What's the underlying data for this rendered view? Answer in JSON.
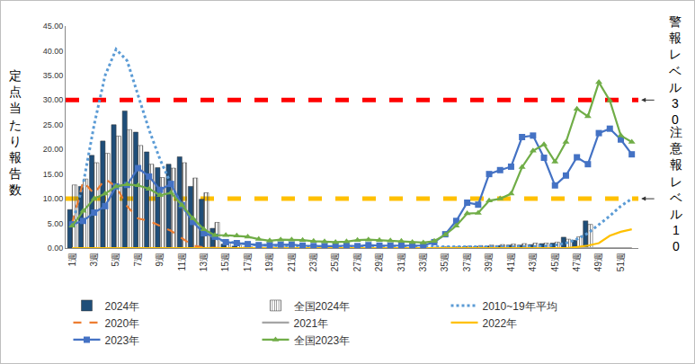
{
  "chart_data": {
    "type": "bar",
    "y_label": "定点当たり報告数",
    "categories": [
      "1週",
      null,
      "3週",
      null,
      "5週",
      null,
      "7週",
      null,
      "9週",
      null,
      "11週",
      null,
      "13週",
      null,
      "15週",
      null,
      "17週",
      null,
      "19週",
      null,
      "21週",
      null,
      "23週",
      null,
      "25週",
      null,
      "27週",
      null,
      "29週",
      null,
      "31週",
      null,
      "33週",
      null,
      "35週",
      null,
      "37週",
      null,
      "39週",
      null,
      "41週",
      null,
      "43週",
      null,
      "45週",
      null,
      "47週",
      null,
      "49週",
      null,
      "51週",
      null
    ],
    "ylim": [
      0,
      45
    ],
    "yticks": [
      {
        "value": 0,
        "label": "0.00"
      },
      {
        "value": 5,
        "label": "5.00"
      },
      {
        "value": 10,
        "label": "10.00"
      },
      {
        "value": 15,
        "label": "15.00"
      },
      {
        "value": 20,
        "label": "20.00"
      },
      {
        "value": 25,
        "label": "25.00"
      },
      {
        "value": 30,
        "label": "30.00"
      },
      {
        "value": 35,
        "label": "35.00"
      },
      {
        "value": 40,
        "label": "40.00"
      },
      {
        "value": 45,
        "label": "45.00"
      }
    ],
    "grid": false,
    "legend": "bottom",
    "annotations": [
      {
        "text": "警報レベル30",
        "y": 30,
        "color": "#ff0000"
      },
      {
        "text": "注意報レベル10",
        "y": 10,
        "color": "#ffc000"
      }
    ],
    "series": [
      {
        "name": "2024年",
        "type": "bar",
        "color": "#1f4e79",
        "values": [
          7.8,
          12.5,
          18.8,
          21.7,
          25.0,
          27.8,
          23.5,
          19.5,
          16.3,
          17.0,
          18.5,
          12.5,
          9.9,
          4.0,
          0.8,
          0.4,
          0.2,
          0.1,
          0.1,
          0.1,
          0.1,
          0.1,
          0.1,
          0.1,
          0.1,
          0.1,
          0.1,
          0.1,
          0.1,
          0.1,
          0.1,
          0.1,
          0.1,
          0.1,
          0.2,
          0.2,
          0.3,
          0.3,
          0.4,
          0.5,
          0.6,
          0.6,
          0.7,
          0.9,
          1.0,
          2.2,
          1.6,
          5.5,
          null,
          null,
          null,
          null
        ]
      },
      {
        "name": "全国2024年",
        "type": "bar",
        "color": "#f5e7a1",
        "marker": "hatched",
        "values": [
          12.8,
          14.0,
          17.3,
          19.2,
          22.7,
          24.0,
          20.8,
          17.0,
          14.3,
          16.2,
          17.3,
          14.2,
          11.2,
          5.2,
          1.2,
          0.6,
          0.3,
          0.2,
          0.2,
          0.2,
          0.1,
          0.1,
          0.1,
          0.1,
          0.1,
          0.1,
          0.1,
          0.1,
          0.1,
          0.1,
          0.1,
          0.1,
          0.1,
          0.2,
          0.3,
          0.3,
          0.4,
          0.5,
          0.6,
          0.7,
          0.8,
          0.9,
          1.0,
          1.0,
          1.2,
          1.8,
          2.3,
          4.8,
          null,
          null,
          null,
          null
        ]
      },
      {
        "name": "2010~19年平均",
        "type": "line",
        "color": "#5b9bd5",
        "line_style": "dotted",
        "marker": "none",
        "values": [
          5,
          13,
          25,
          35,
          40.3,
          38,
          31,
          24,
          18,
          13,
          8.5,
          5.5,
          3.5,
          2,
          1.3,
          1,
          0.8,
          0.6,
          0.5,
          0.4,
          0.3,
          0.3,
          0.2,
          0.2,
          0.2,
          0.2,
          0.2,
          0.2,
          0.2,
          0.2,
          0.2,
          0.2,
          0.2,
          0.2,
          0.2,
          0.2,
          0.2,
          0.2,
          0.2,
          0.2,
          0.2,
          0.3,
          0.3,
          0.4,
          0.6,
          1,
          1.8,
          3,
          4.7,
          6.5,
          8.5,
          10
        ]
      },
      {
        "name": "2020年",
        "type": "line",
        "color": "#ed7d31",
        "line_style": "dashed",
        "marker": "none",
        "values": [
          5,
          13.5,
          11,
          14,
          12.5,
          8.5,
          6,
          5.5,
          4.5,
          3.5,
          2,
          0.5,
          0.1,
          0,
          0,
          0,
          0,
          0,
          0,
          0,
          0,
          0,
          0,
          0,
          0,
          0,
          0,
          0,
          0,
          0,
          0,
          0,
          0,
          0,
          0,
          0,
          0,
          0,
          0,
          0,
          0,
          0,
          0,
          0,
          0,
          0,
          0,
          0,
          0,
          0,
          0,
          0
        ]
      },
      {
        "name": "2021年",
        "type": "line",
        "color": "#a5a5a5",
        "line_style": "solid",
        "marker": "none",
        "values": [
          0,
          0,
          0,
          0,
          0,
          0,
          0,
          0,
          0,
          0,
          0,
          0,
          0,
          0,
          0,
          0,
          0,
          0,
          0,
          0,
          0,
          0,
          0,
          0,
          0,
          0,
          0,
          0,
          0,
          0,
          0,
          0,
          0,
          0,
          0,
          0,
          0,
          0,
          0,
          0,
          0,
          0,
          0,
          0,
          0,
          0,
          0,
          0,
          0,
          0,
          0,
          0
        ]
      },
      {
        "name": "2022年",
        "type": "line",
        "color": "#ffc000",
        "line_style": "solid",
        "marker": "none",
        "values": [
          0,
          0,
          0,
          0,
          0,
          0,
          0,
          0,
          0,
          0,
          0,
          0,
          0,
          0,
          0,
          0,
          0,
          0,
          0,
          0,
          0,
          0,
          0,
          0,
          0,
          0,
          0,
          0,
          0,
          0,
          0,
          0,
          0,
          0,
          0,
          0,
          0,
          0,
          0,
          0,
          0,
          0,
          0,
          0,
          0,
          0,
          0.2,
          0.5,
          1,
          2.5,
          3.3,
          3.8
        ]
      },
      {
        "name": "2023年",
        "type": "line",
        "color": "#4472c4",
        "line_style": "solid",
        "marker": "square",
        "values": [
          4.8,
          5.5,
          7.2,
          8.5,
          12.5,
          12.8,
          16.2,
          14.5,
          11.8,
          13,
          8.7,
          5.3,
          3,
          2.3,
          1.2,
          1,
          0.8,
          0.6,
          0.6,
          0.7,
          0.7,
          0.5,
          0.4,
          0.4,
          0.4,
          0.5,
          0.4,
          0.6,
          0.5,
          0.5,
          0.5,
          0.5,
          0.5,
          1.2,
          2.8,
          5.5,
          9.2,
          8.8,
          15,
          15.8,
          16.5,
          22.5,
          22.8,
          18.3,
          12.7,
          14.7,
          18.4,
          17,
          23.3,
          24.2,
          22,
          19
        ]
      },
      {
        "name": "全国2023年",
        "type": "line",
        "color": "#70ad47",
        "line_style": "solid",
        "marker": "triangle",
        "values": [
          4.5,
          7.5,
          10,
          11,
          12.5,
          12.9,
          12.7,
          12,
          10.7,
          11.2,
          8.7,
          6,
          3.8,
          2.6,
          2.6,
          2.5,
          2.3,
          1.8,
          1.5,
          1.7,
          1.7,
          1.6,
          1.4,
          1.3,
          1.2,
          1.3,
          1.6,
          1.7,
          1.6,
          1.5,
          1.4,
          1.2,
          1.1,
          1.4,
          2.7,
          4.5,
          7,
          7.1,
          9.6,
          10,
          11,
          16.4,
          19.7,
          21,
          17.5,
          21.5,
          28.2,
          26.7,
          33.6,
          29.9,
          22.8,
          21.5
        ]
      }
    ]
  }
}
